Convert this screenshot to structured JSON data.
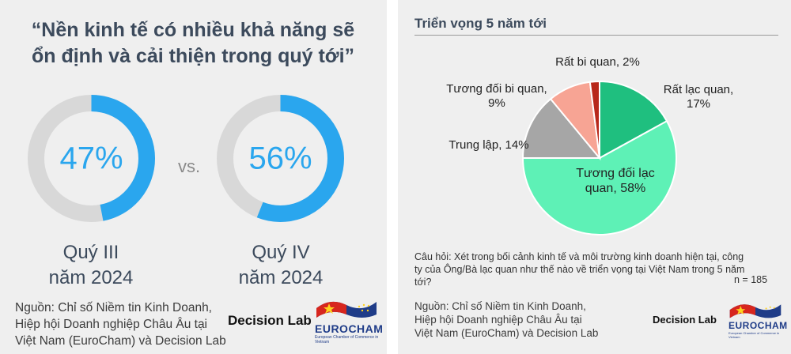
{
  "left": {
    "quote": "“Nền kinh tế có nhiều khả năng sẽ ổn định và cải thiện trong quý tới”",
    "vs": "vs.",
    "q3": {
      "value": 47,
      "label": "47%",
      "title": "Quý III",
      "year": "năm 2024"
    },
    "q4": {
      "value": 56,
      "label": "56%",
      "title": "Quý IV",
      "year": "năm 2024"
    },
    "source": [
      "Nguồn: Chỉ số Niềm tin Kinh Doanh,",
      "Hiệp hội Doanh nghiệp Châu Âu tại",
      "Việt Nam (EuroCham) và Decision Lab"
    ],
    "brand": "Decision Lab",
    "eurocham": "EUROCHAM",
    "eurocham_sub": "European Chamber of Commerce in Vietnam"
  },
  "right": {
    "title": "Triển vọng 5 năm tới",
    "question": "Câu hỏi: Xét trong bối cảnh kinh tế và môi trường kinh doanh hiện tại, công ty của Ông/Bà lạc quan như thế nào về triển vọng tại Việt Nam trong 5 năm tới?",
    "n": "n = 185",
    "source": [
      "Nguồn: Chỉ số Niềm tin Kinh Doanh,",
      "Hiệp hội Doanh nghiệp Châu Âu tại",
      "Việt Nam (EuroCham) và Decision Lab"
    ],
    "brand": "Decision Lab",
    "eurocham": "EUROCHAM",
    "eurocham_sub": "European Chamber of Commerce in Vietnam"
  },
  "colors": {
    "donut_fill": "#2aa6ee",
    "donut_track": "#d8d8d8",
    "rat_lac_quan": "#1fbf7f",
    "tuong_doi_lac_quan": "#5ef1b6",
    "trung_lap": "#a6a6a6",
    "tuong_doi_bi_quan": "#f7a494",
    "rat_bi_quan": "#b8281b"
  },
  "chart_data": [
    {
      "type": "pie",
      "title": "",
      "categories": [
        "Quý III năm 2024"
      ],
      "values": [
        47
      ],
      "unit": "%"
    },
    {
      "type": "pie",
      "title": "",
      "categories": [
        "Quý IV năm 2024"
      ],
      "values": [
        56
      ],
      "unit": "%"
    },
    {
      "type": "pie",
      "title": "Triển vọng 5 năm tới",
      "categories": [
        "Rất lạc quan",
        "Tương đối lạc quan",
        "Trung lập",
        "Tương đối bi quan",
        "Rất bi quan"
      ],
      "values": [
        17,
        58,
        14,
        9,
        2
      ],
      "labels": [
        [
          "Rất lạc quan,",
          "17%"
        ],
        [
          "Tương đối lạc",
          "quan, 58%"
        ],
        [
          "Trung lập, 14%"
        ],
        [
          "Tương đối bi quan,",
          "9%"
        ],
        [
          "Rất bi quan, 2%"
        ]
      ],
      "unit": "%"
    }
  ]
}
